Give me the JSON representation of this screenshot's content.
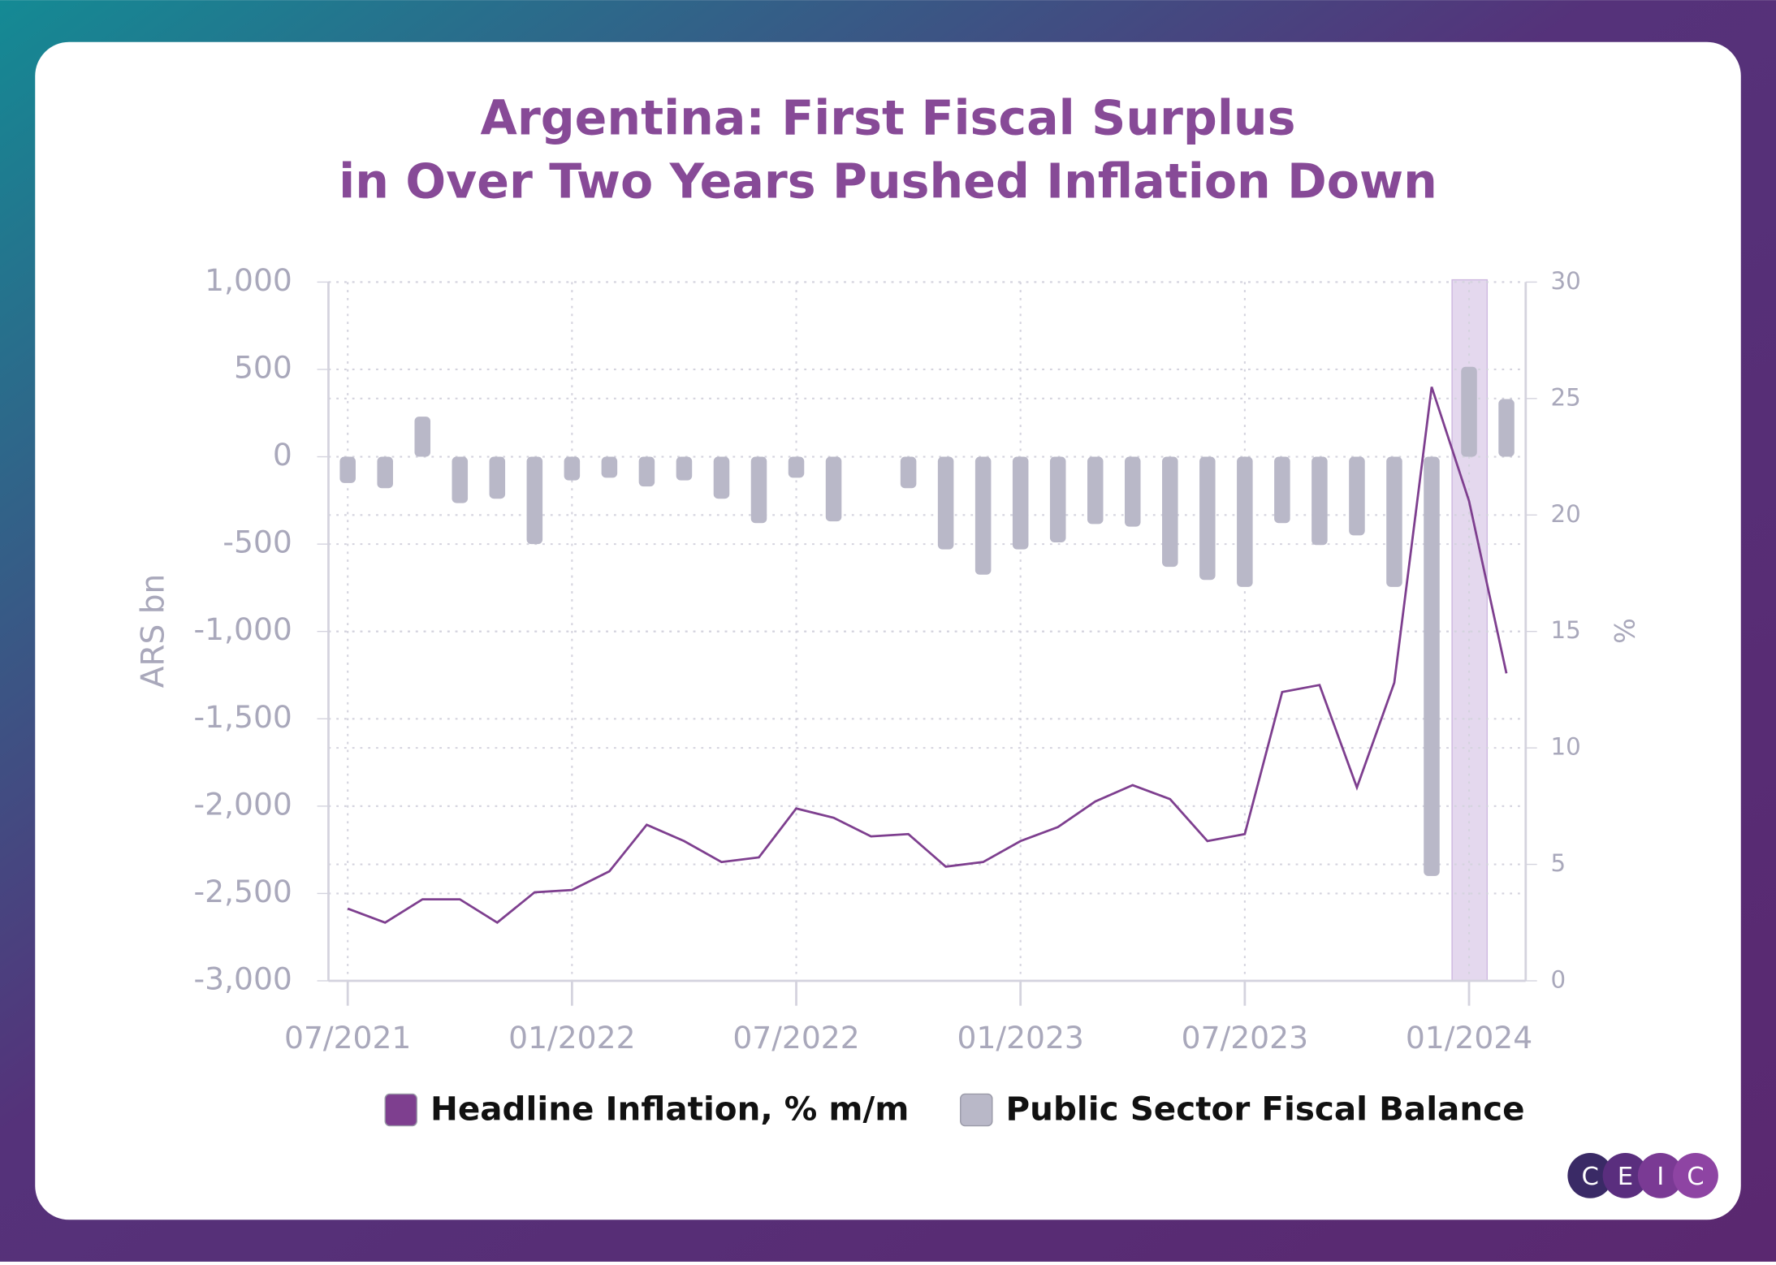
{
  "chart_data": {
    "type": "combo",
    "title": [
      "Argentina: First Fiscal Surplus",
      "in Over Two Years Pushed Inflation Down"
    ],
    "x": [
      "07/2021",
      "08/2021",
      "09/2021",
      "10/2021",
      "11/2021",
      "12/2021",
      "01/2022",
      "02/2022",
      "03/2022",
      "04/2022",
      "05/2022",
      "06/2022",
      "07/2022",
      "08/2022",
      "09/2022",
      "10/2022",
      "11/2022",
      "12/2022",
      "01/2023",
      "02/2023",
      "03/2023",
      "04/2023",
      "05/2023",
      "06/2023",
      "07/2023",
      "08/2023",
      "09/2023",
      "10/2023",
      "11/2023",
      "12/2023",
      "01/2024",
      "02/2024"
    ],
    "xticks": [
      "07/2021",
      "01/2022",
      "07/2022",
      "01/2023",
      "07/2023",
      "01/2024"
    ],
    "y_label": "ARS bn",
    "y2_label": "%",
    "ylim": [
      -3000,
      1000
    ],
    "yticks": [
      {
        "value": -3000,
        "label": "-3,000"
      },
      {
        "value": -2500,
        "label": "-2,500"
      },
      {
        "value": -2000,
        "label": "-2,000"
      },
      {
        "value": -1500,
        "label": "-1,500"
      },
      {
        "value": -1000,
        "label": "-1,000"
      },
      -500,
      0,
      500,
      {
        "value": 1000,
        "label": "1,000"
      }
    ],
    "y2lim": [
      0,
      30
    ],
    "y2ticks": [
      0,
      5,
      10,
      15,
      20,
      25,
      30
    ],
    "grid": true,
    "highlight": "01/2024",
    "highlight_color": "#e4d8ee",
    "series": [
      {
        "name": "Headline Inflation, % m/m",
        "type": "line",
        "axis": "y2",
        "color": "#7e3f8f",
        "values": [
          3.1,
          2.5,
          3.5,
          3.5,
          2.5,
          3.8,
          3.9,
          4.7,
          6.7,
          6.0,
          5.1,
          5.3,
          7.4,
          7.0,
          6.2,
          6.3,
          4.9,
          5.1,
          6.0,
          6.6,
          7.7,
          8.4,
          7.8,
          6.0,
          6.3,
          12.4,
          12.7,
          8.3,
          12.8,
          25.5,
          20.6,
          13.2
        ]
      },
      {
        "name": "Public Sector Fiscal Balance",
        "type": "bar",
        "axis": "y",
        "color": "#b9b8c8",
        "values": [
          -150,
          -180,
          230,
          -265,
          -240,
          -500,
          -135,
          -120,
          -170,
          -135,
          -240,
          -380,
          -120,
          -370,
          null,
          -180,
          -530,
          -675,
          -530,
          -490,
          -385,
          -400,
          -630,
          -705,
          -745,
          -380,
          -505,
          -450,
          -745,
          -2400,
          515,
          330
        ]
      }
    ]
  },
  "logo": [
    "C",
    "E",
    "I",
    "C"
  ]
}
